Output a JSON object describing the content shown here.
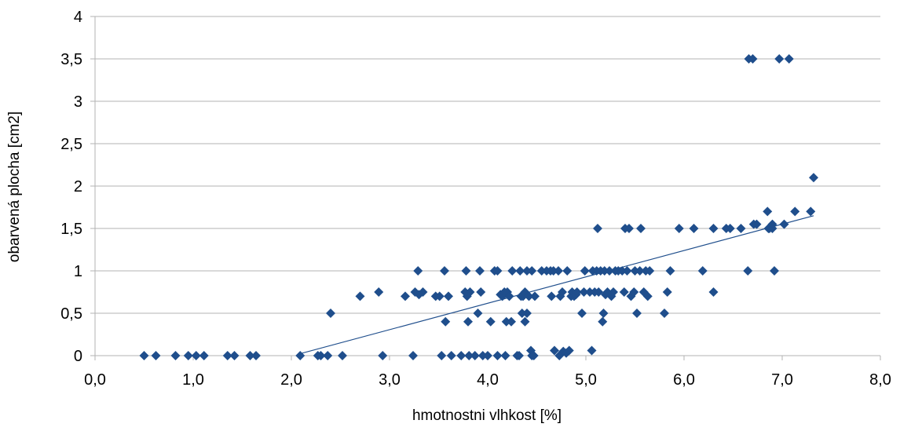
{
  "chart_data": {
    "type": "scatter",
    "title": "",
    "xlabel": "hmotnostni vlhkost [%]",
    "ylabel": "obarvená plocha [cm2]",
    "xlim": [
      0,
      8
    ],
    "ylim": [
      0,
      4
    ],
    "x_ticks": [
      "0,0",
      "1,0",
      "2,0",
      "3,0",
      "4,0",
      "5,0",
      "6,0",
      "7,0",
      "8,0"
    ],
    "y_ticks": [
      "0",
      "0,5",
      "1",
      "1,5",
      "2",
      "2,5",
      "3",
      "3,5",
      "4"
    ],
    "grid": "horizontal",
    "legend": "none",
    "marker_color": "#1F4E8C",
    "trendline": {
      "type": "linear",
      "color": "#1F4E8C",
      "x_range": [
        2.08,
        7.32
      ],
      "y_start": 0.02,
      "y_end": 1.65
    },
    "series": [
      {
        "points": [
          [
            0.5,
            0
          ],
          [
            0.62,
            0
          ],
          [
            0.82,
            0
          ],
          [
            0.95,
            0
          ],
          [
            1.03,
            0
          ],
          [
            1.11,
            0
          ],
          [
            1.35,
            0
          ],
          [
            1.42,
            0
          ],
          [
            1.58,
            0
          ],
          [
            1.64,
            0
          ],
          [
            2.09,
            0
          ],
          [
            2.27,
            0
          ],
          [
            2.3,
            0
          ],
          [
            2.37,
            0
          ],
          [
            2.52,
            0
          ],
          [
            2.4,
            0.5
          ],
          [
            2.7,
            0.7
          ],
          [
            2.89,
            0.75
          ],
          [
            2.93,
            0
          ],
          [
            3.16,
            0.7
          ],
          [
            3.24,
            0
          ],
          [
            3.26,
            0.75
          ],
          [
            3.29,
            1
          ],
          [
            3.3,
            0.72
          ],
          [
            3.34,
            0.75
          ],
          [
            3.47,
            0.7
          ],
          [
            3.51,
            0.7
          ],
          [
            3.53,
            0
          ],
          [
            3.56,
            1
          ],
          [
            3.57,
            0.4
          ],
          [
            3.6,
            0.7
          ],
          [
            3.63,
            0
          ],
          [
            3.73,
            0
          ],
          [
            3.77,
            0.75
          ],
          [
            3.79,
            0.7
          ],
          [
            3.8,
            0.4
          ],
          [
            3.81,
            0
          ],
          [
            3.78,
            1
          ],
          [
            3.82,
            0.75
          ],
          [
            3.87,
            0
          ],
          [
            3.9,
            0.5
          ],
          [
            3.92,
            1
          ],
          [
            3.93,
            0.75
          ],
          [
            3.95,
            0
          ],
          [
            4.0,
            0
          ],
          [
            4.03,
            0.4
          ],
          [
            4.07,
            1
          ],
          [
            4.1,
            1
          ],
          [
            4.1,
            0
          ],
          [
            4.13,
            0.72
          ],
          [
            4.15,
            0.7
          ],
          [
            4.17,
            0.75
          ],
          [
            4.18,
            0
          ],
          [
            4.19,
            0.4
          ],
          [
            4.2,
            0.75
          ],
          [
            4.22,
            0.7
          ],
          [
            4.24,
            0.4
          ],
          [
            4.25,
            1
          ],
          [
            4.3,
            0
          ],
          [
            4.32,
            0
          ],
          [
            4.33,
            1
          ],
          [
            4.34,
            0.7
          ],
          [
            4.35,
            0.5
          ],
          [
            4.36,
            0.7
          ],
          [
            4.38,
            0.75
          ],
          [
            4.38,
            0.4
          ],
          [
            4.4,
            1
          ],
          [
            4.4,
            0.5
          ],
          [
            4.42,
            0.7
          ],
          [
            4.44,
            0.06
          ],
          [
            4.45,
            0
          ],
          [
            4.45,
            1
          ],
          [
            4.47,
            0
          ],
          [
            4.48,
            0.7
          ],
          [
            4.55,
            1
          ],
          [
            4.6,
            1
          ],
          [
            4.64,
            1
          ],
          [
            4.65,
            0.7
          ],
          [
            4.67,
            1
          ],
          [
            4.68,
            0.06
          ],
          [
            4.72,
            1
          ],
          [
            4.73,
            0
          ],
          [
            4.74,
            0.7
          ],
          [
            4.76,
            0.75
          ],
          [
            4.77,
            0.05
          ],
          [
            4.8,
            0.03
          ],
          [
            4.81,
            1
          ],
          [
            4.83,
            0.06
          ],
          [
            4.85,
            0.7
          ],
          [
            4.86,
            0.75
          ],
          [
            4.88,
            0.7
          ],
          [
            4.9,
            0.72
          ],
          [
            4.91,
            0.75
          ],
          [
            4.96,
            0.5
          ],
          [
            4.98,
            0.75
          ],
          [
            4.99,
            1
          ],
          [
            5.04,
            0.75
          ],
          [
            5.06,
            0.06
          ],
          [
            5.07,
            1
          ],
          [
            5.09,
            0.75
          ],
          [
            5.11,
            1
          ],
          [
            5.12,
            1.5
          ],
          [
            5.13,
            0.75
          ],
          [
            5.15,
            1
          ],
          [
            5.17,
            0.4
          ],
          [
            5.18,
            0.5
          ],
          [
            5.19,
            1
          ],
          [
            5.2,
            0.72
          ],
          [
            5.22,
            0.75
          ],
          [
            5.24,
            1
          ],
          [
            5.26,
            0.7
          ],
          [
            5.28,
            0.75
          ],
          [
            5.3,
            1
          ],
          [
            5.33,
            1
          ],
          [
            5.37,
            1
          ],
          [
            5.39,
            0.75
          ],
          [
            5.4,
            1.5
          ],
          [
            5.42,
            1
          ],
          [
            5.44,
            1.5
          ],
          [
            5.46,
            0.7
          ],
          [
            5.49,
            0.75
          ],
          [
            5.5,
            1
          ],
          [
            5.52,
            0.5
          ],
          [
            5.55,
            1
          ],
          [
            5.56,
            1.5
          ],
          [
            5.59,
            0.75
          ],
          [
            5.61,
            1
          ],
          [
            5.63,
            0.7
          ],
          [
            5.65,
            1
          ],
          [
            5.8,
            0.5
          ],
          [
            5.83,
            0.75
          ],
          [
            5.86,
            1
          ],
          [
            5.95,
            1.5
          ],
          [
            6.1,
            1.5
          ],
          [
            6.19,
            1
          ],
          [
            6.3,
            1.5
          ],
          [
            6.3,
            0.75
          ],
          [
            6.43,
            1.5
          ],
          [
            6.47,
            1.5
          ],
          [
            6.58,
            1.5
          ],
          [
            6.66,
            3.5
          ],
          [
            6.65,
            1
          ],
          [
            6.7,
            3.5
          ],
          [
            6.71,
            1.55
          ],
          [
            6.74,
            1.55
          ],
          [
            6.85,
            1.7
          ],
          [
            6.86,
            1.5
          ],
          [
            6.87,
            1.5
          ],
          [
            6.9,
            1.55
          ],
          [
            6.9,
            1.5
          ],
          [
            6.92,
            1
          ],
          [
            6.97,
            3.5
          ],
          [
            7.02,
            1.55
          ],
          [
            7.07,
            3.5
          ],
          [
            7.13,
            1.7
          ],
          [
            7.29,
            1.7
          ],
          [
            7.32,
            2.1
          ]
        ]
      }
    ]
  }
}
